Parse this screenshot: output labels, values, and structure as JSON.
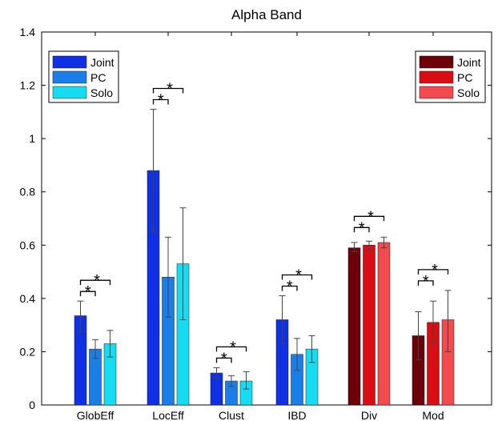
{
  "chart_data": {
    "type": "bar",
    "title": "Alpha Band",
    "xlabel": "",
    "ylabel": "",
    "ylim": [
      0,
      1.4
    ],
    "yticks": [
      "0",
      "0.2",
      "0.4",
      "0.6",
      "0.8",
      "1",
      "1.2",
      "1.4"
    ],
    "categories": [
      "GlobEff",
      "LocEff",
      "Clust",
      "IBD",
      "Div",
      "Mod"
    ],
    "series": [
      {
        "name": "Joint",
        "values": [
          0.335,
          0.88,
          0.12,
          0.32,
          0.59,
          0.26
        ],
        "err_low": [
          0.275,
          0.65,
          0.1,
          0.23,
          0.575,
          0.17
        ],
        "err_high": [
          0.39,
          1.11,
          0.14,
          0.41,
          0.61,
          0.35
        ]
      },
      {
        "name": "PC",
        "values": [
          0.21,
          0.48,
          0.09,
          0.19,
          0.6,
          0.31
        ],
        "err_low": [
          0.175,
          0.33,
          0.07,
          0.13,
          0.58,
          0.23
        ],
        "err_high": [
          0.245,
          0.63,
          0.11,
          0.25,
          0.615,
          0.39
        ]
      },
      {
        "name": "Solo",
        "values": [
          0.23,
          0.53,
          0.09,
          0.21,
          0.61,
          0.32
        ],
        "err_low": [
          0.18,
          0.32,
          0.06,
          0.16,
          0.59,
          0.2
        ],
        "err_high": [
          0.28,
          0.74,
          0.125,
          0.26,
          0.63,
          0.43
        ]
      }
    ],
    "colors": {
      "blue_group": [
        "#1030e6",
        "#1a7ee8",
        "#16dcf2"
      ],
      "red_group": [
        "#6b0008",
        "#d90d14",
        "#f24a4e"
      ]
    },
    "blue_group_categories": [
      "GlobEff",
      "LocEff",
      "Clust",
      "IBD"
    ],
    "red_group_categories": [
      "Div",
      "Mod"
    ],
    "legends": [
      {
        "placement": "top-left",
        "entries": [
          "Joint",
          "PC",
          "Solo"
        ],
        "group": "blue"
      },
      {
        "placement": "top-right",
        "entries": [
          "Joint",
          "PC",
          "Solo"
        ],
        "group": "red"
      }
    ],
    "significance_marker": "*",
    "grid": false
  }
}
